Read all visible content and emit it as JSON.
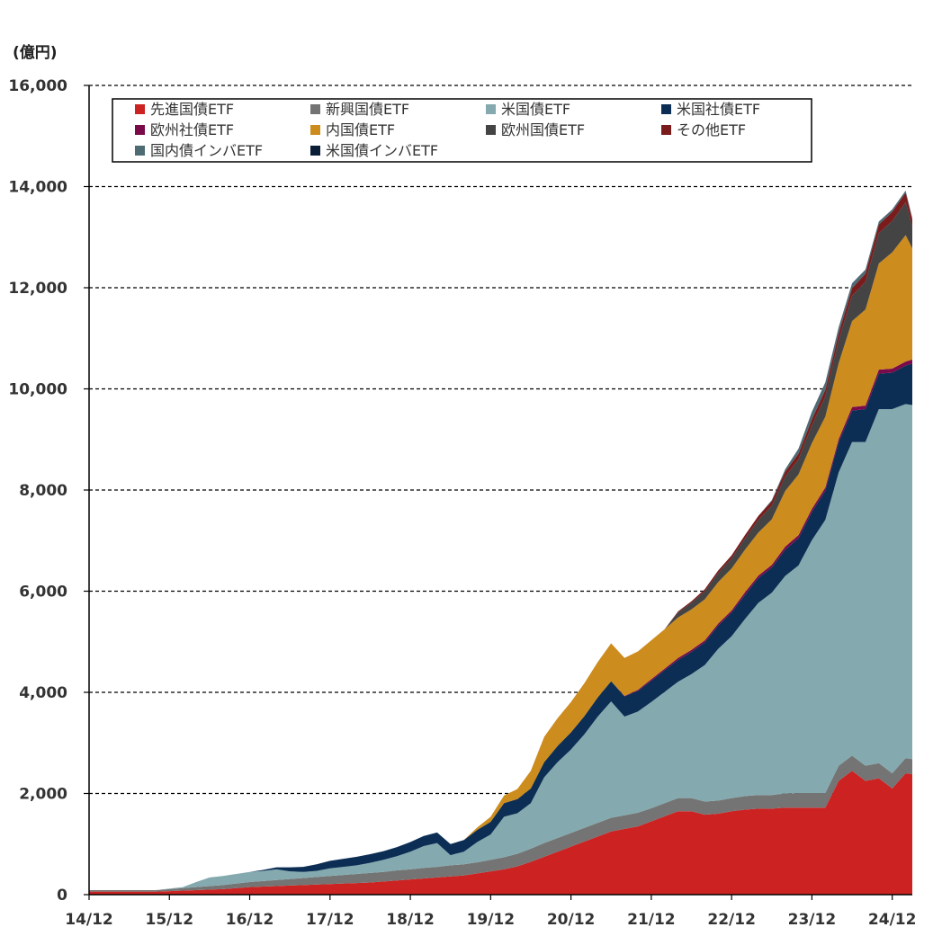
{
  "chart_data": {
    "type": "area",
    "stacked": true,
    "unit_label": "(億円)",
    "ylim": [
      0,
      16000
    ],
    "y_ticks": [
      0,
      2000,
      4000,
      6000,
      8000,
      10000,
      12000,
      14000,
      16000
    ],
    "y_tick_labels": [
      "0",
      "2,000",
      "4,000",
      "6,000",
      "8,000",
      "10,000",
      "12,000",
      "14,000",
      "16,000"
    ],
    "grid": "horizontal dashed",
    "legend_position": "top-left",
    "x_tick_labels": [
      "14/12",
      "15/12",
      "16/12",
      "17/12",
      "18/12",
      "19/12",
      "20/12",
      "21/12",
      "22/12",
      "23/12",
      "24/12"
    ],
    "x": [
      0,
      2,
      4,
      6,
      8,
      10,
      12,
      14,
      16,
      18,
      20,
      22,
      24,
      26,
      28,
      30,
      32,
      34,
      36,
      38,
      40,
      42,
      44,
      46,
      48,
      50,
      52,
      54,
      56,
      58,
      60,
      62,
      64,
      66,
      68,
      70,
      72,
      74,
      76,
      78,
      80,
      82,
      84,
      86,
      88,
      90,
      92,
      94,
      96,
      98,
      100,
      102,
      104,
      106,
      108,
      110,
      112,
      114,
      116,
      118,
      120,
      122,
      123
    ],
    "series": [
      {
        "name": "先進国債ETF",
        "color": "#CC2222",
        "values": [
          60,
          60,
          60,
          60,
          60,
          60,
          70,
          80,
          90,
          100,
          110,
          130,
          150,
          160,
          170,
          180,
          190,
          200,
          210,
          220,
          230,
          240,
          260,
          280,
          300,
          320,
          340,
          360,
          380,
          420,
          460,
          500,
          560,
          650,
          750,
          850,
          950,
          1050,
          1150,
          1250,
          1300,
          1350,
          1450,
          1550,
          1650,
          1650,
          1580,
          1600,
          1650,
          1680,
          1700,
          1700,
          1720,
          1720,
          1720,
          1720,
          2250,
          2450,
          2250,
          2300,
          2100,
          2400,
          2380
        ]
      },
      {
        "name": "新興国債ETF",
        "color": "#747474",
        "values": [
          30,
          30,
          30,
          30,
          30,
          30,
          40,
          50,
          60,
          70,
          80,
          90,
          100,
          110,
          120,
          130,
          140,
          150,
          160,
          170,
          180,
          190,
          190,
          200,
          200,
          210,
          210,
          220,
          220,
          220,
          230,
          240,
          250,
          260,
          270,
          270,
          270,
          270,
          270,
          270,
          270,
          270,
          260,
          260,
          260,
          260,
          260,
          260,
          260,
          270,
          270,
          270,
          280,
          290,
          290,
          290,
          300,
          300,
          300,
          300,
          300,
          300,
          300
        ]
      },
      {
        "name": "米国債ETF",
        "color": "#84AAAF",
        "values": [
          0,
          0,
          0,
          0,
          0,
          0,
          10,
          20,
          100,
          170,
          180,
          190,
          200,
          200,
          210,
          150,
          120,
          120,
          150,
          160,
          170,
          200,
          240,
          280,
          350,
          430,
          470,
          200,
          250,
          400,
          500,
          800,
          800,
          900,
          1300,
          1500,
          1650,
          1850,
          2100,
          2300,
          1950,
          2000,
          2100,
          2200,
          2300,
          2450,
          2700,
          3000,
          3200,
          3500,
          3800,
          4000,
          4300,
          4500,
          5000,
          5400,
          5800,
          6200,
          6400,
          7000,
          7200,
          7000,
          7000
        ]
      },
      {
        "name": "米国社債ETF",
        "color": "#0D2E54",
        "values": [
          0,
          0,
          0,
          0,
          0,
          0,
          0,
          0,
          0,
          0,
          0,
          0,
          0,
          20,
          40,
          80,
          100,
          130,
          150,
          160,
          170,
          170,
          170,
          180,
          190,
          200,
          210,
          220,
          230,
          240,
          250,
          270,
          280,
          290,
          300,
          320,
          340,
          360,
          380,
          400,
          400,
          410,
          420,
          430,
          430,
          440,
          450,
          460,
          470,
          480,
          490,
          500,
          520,
          540,
          560,
          580,
          600,
          620,
          650,
          700,
          720,
          760,
          820
        ]
      },
      {
        "name": "欧州社債ETF",
        "color": "#7A0A4A",
        "values": [
          0,
          0,
          0,
          0,
          0,
          0,
          0,
          0,
          0,
          0,
          0,
          0,
          0,
          0,
          0,
          0,
          0,
          0,
          0,
          0,
          0,
          0,
          0,
          0,
          0,
          0,
          0,
          0,
          0,
          0,
          0,
          0,
          0,
          0,
          0,
          0,
          0,
          0,
          0,
          0,
          10,
          20,
          30,
          30,
          40,
          40,
          40,
          40,
          40,
          50,
          50,
          50,
          60,
          60,
          60,
          60,
          60,
          70,
          70,
          80,
          80,
          80,
          80
        ]
      },
      {
        "name": "内国債ETF",
        "color": "#CC8C1E",
        "values": [
          0,
          0,
          0,
          0,
          0,
          0,
          0,
          0,
          0,
          0,
          0,
          0,
          0,
          0,
          0,
          0,
          0,
          0,
          0,
          0,
          0,
          0,
          0,
          0,
          0,
          0,
          0,
          0,
          0,
          50,
          100,
          150,
          200,
          350,
          500,
          550,
          600,
          650,
          700,
          750,
          750,
          760,
          770,
          780,
          800,
          800,
          810,
          820,
          830,
          840,
          850,
          900,
          1100,
          1200,
          1300,
          1400,
          1500,
          1700,
          1900,
          2100,
          2300,
          2500,
          2200
        ]
      },
      {
        "name": "欧州国債ETF",
        "color": "#444444",
        "values": [
          0,
          0,
          0,
          0,
          0,
          0,
          0,
          0,
          0,
          0,
          0,
          0,
          0,
          0,
          0,
          0,
          0,
          0,
          0,
          0,
          0,
          0,
          0,
          0,
          0,
          0,
          0,
          0,
          0,
          0,
          0,
          0,
          0,
          0,
          0,
          0,
          0,
          0,
          0,
          0,
          0,
          0,
          0,
          0,
          100,
          130,
          160,
          180,
          200,
          220,
          250,
          270,
          280,
          300,
          350,
          400,
          450,
          500,
          550,
          600,
          620,
          650,
          420
        ]
      },
      {
        "name": "その他ETF",
        "color": "#7A1C1C",
        "values": [
          0,
          0,
          0,
          0,
          0,
          0,
          0,
          0,
          0,
          0,
          0,
          0,
          0,
          0,
          0,
          0,
          0,
          0,
          0,
          0,
          0,
          0,
          0,
          0,
          0,
          0,
          0,
          0,
          0,
          0,
          0,
          0,
          0,
          0,
          0,
          0,
          0,
          0,
          0,
          0,
          0,
          0,
          0,
          0,
          20,
          30,
          40,
          50,
          60,
          70,
          80,
          90,
          100,
          110,
          120,
          130,
          140,
          150,
          160,
          170,
          180,
          190,
          140
        ]
      },
      {
        "name": "国内債インバETF",
        "color": "#4E6B74",
        "values": [
          0,
          0,
          0,
          0,
          0,
          0,
          0,
          0,
          0,
          0,
          0,
          0,
          0,
          0,
          0,
          0,
          0,
          0,
          0,
          0,
          0,
          0,
          0,
          0,
          0,
          0,
          0,
          0,
          0,
          0,
          0,
          0,
          0,
          0,
          0,
          0,
          0,
          0,
          0,
          0,
          0,
          0,
          0,
          0,
          0,
          0,
          0,
          0,
          0,
          0,
          0,
          20,
          50,
          100,
          150,
          150,
          120,
          100,
          80,
          60,
          50,
          40,
          40
        ]
      },
      {
        "name": "米国債インバETF",
        "color": "#0A1E35",
        "values": [
          0,
          0,
          0,
          0,
          0,
          0,
          0,
          0,
          0,
          0,
          0,
          0,
          0,
          0,
          0,
          0,
          0,
          0,
          0,
          0,
          0,
          0,
          0,
          0,
          0,
          0,
          0,
          0,
          0,
          0,
          0,
          0,
          0,
          0,
          0,
          0,
          0,
          0,
          0,
          0,
          0,
          0,
          0,
          0,
          0,
          0,
          0,
          0,
          0,
          0,
          0,
          0,
          0,
          0,
          0,
          0,
          0,
          0,
          0,
          0,
          0,
          0,
          0
        ]
      }
    ]
  }
}
